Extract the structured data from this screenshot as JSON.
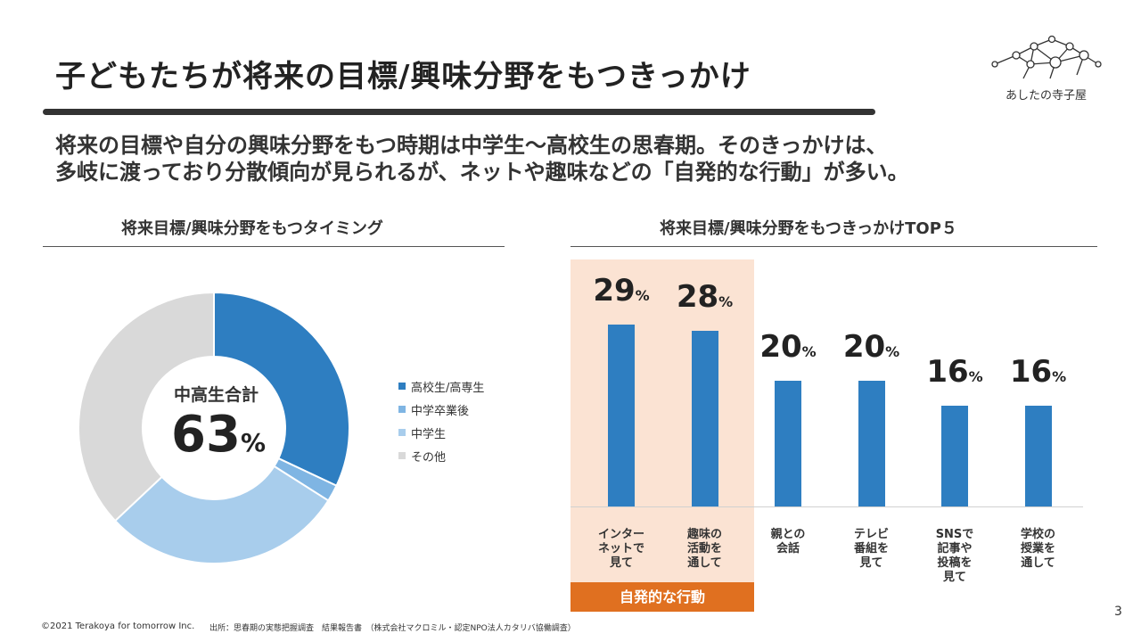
{
  "slide": {
    "title": "子どもたちが将来の目標/興味分野をもつきっかけ",
    "lead_line1": "将来の目標や自分の興味分野をもつ時期は中学生～高校生の思春期。そのきっかけは、",
    "lead_line2": "多岐に渡っており分散傾向が見られるが、ネットや趣味などの「自発的な行動」が多い。",
    "logo_text": "あしたの寺子屋",
    "footer_copyright": "©2021 Terakoya for tomorrow Inc.",
    "footer_source": "出所：思春期の実態把握調査　結果報告書　（株式会社マクロミル・認定NPO法人カタリバ協働調査）",
    "page_number": "3"
  },
  "left_chart": {
    "section_title": "将来目標/興味分野をもつタイミング",
    "center_label": "中高生合計",
    "center_value": "63",
    "center_unit": "%"
  },
  "right_chart": {
    "section_title": "将来目標/興味分野をもつきっかけTOP５",
    "highlight_label": "自発的な行動"
  },
  "colors": {
    "dark_blue": "#2e7ec1",
    "mid_blue": "#7fb5e3",
    "light_blue": "#a8cdec",
    "gray": "#d9d9d9",
    "highlight_bg": "#fbe3d3",
    "badge_orange": "#e07020"
  },
  "chart_data": [
    {
      "type": "pie",
      "variant": "donut",
      "title": "将来目標/興味分野をもつタイミング",
      "categories": [
        "高校生/高専生",
        "中学卒業後",
        "中学生",
        "その他"
      ],
      "values": [
        32,
        2,
        29,
        37
      ],
      "colors": [
        "#2e7ec1",
        "#7fb5e3",
        "#a8cdec",
        "#d9d9d9"
      ],
      "legend": "right",
      "annotation": "中高生合計 63%"
    },
    {
      "type": "bar",
      "title": "将来目標/興味分野をもつきっかけTOP５",
      "categories": [
        "インター\nネットで\n見て",
        "趣味の\n活動を\n通して",
        "親との\n会話",
        "テレビ\n番組を\n見て",
        "SNSで\n記事や\n投稿を\n見て",
        "学校の\n授業を\n通して"
      ],
      "values": [
        29,
        28,
        20,
        20,
        16,
        16
      ],
      "unit": "%",
      "ylim": [
        0,
        40
      ],
      "color": "#2e7ec1",
      "highlight_group": {
        "indices": [
          0,
          1
        ],
        "label": "自発的な行動"
      }
    }
  ]
}
